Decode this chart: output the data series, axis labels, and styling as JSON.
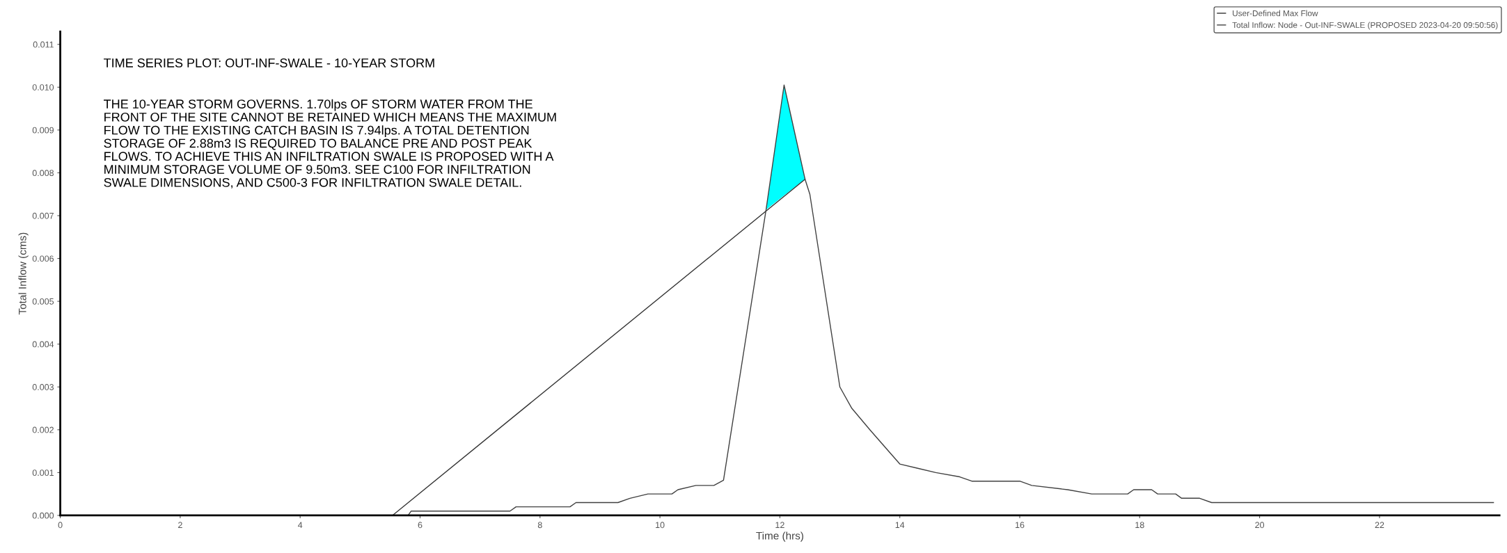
{
  "chart_data": {
    "type": "line",
    "title": "TIME SERIES PLOT: OUT-INF-SWALE - 10-YEAR STORM",
    "xlabel": "Time (hrs)",
    "ylabel": "Total Inflow (cms)",
    "annotations": [
      "THE 10-YEAR STORM GOVERNS. 1.70lps OF STORM WATER FROM THE\nFRONT OF THE SITE CANNOT BE RETAINED WHICH MEANS THE MAXIMUM\nFLOW TO THE EXISTING CATCH BASIN IS 7.94lps. A TOTAL DETENTION\nSTORAGE OF 2.88m3 IS REQUIRED TO BALANCE PRE AND POST PEAK\nFLOWS. TO ACHIEVE THIS AN INFILTRATION SWALE IS PROPOSED WITH A\nMINIMUM STORAGE VOLUME OF 9.50m3. SEE C100 FOR INFILTRATION\nSWALE DIMENSIONS, AND C500-3 FOR INFILTRATION SWALE DETAIL."
    ],
    "series": [
      {
        "name": "User-Defined Max Flow",
        "color": "#333333",
        "x": [
          0,
          5.54,
          12.42
        ],
        "values": [
          0,
          0,
          0.00785
        ]
      },
      {
        "name": "Total Inflow: Node - Out-INF-SWALE (PROPOSED 2023-04-20 09:50:56)",
        "color": "#404040",
        "x": [
          0,
          5.8,
          5.85,
          7.5,
          7.6,
          8.5,
          8.6,
          9.3,
          9.5,
          9.8,
          10.2,
          10.3,
          10.6,
          10.9,
          11.06,
          11.77,
          12.07,
          12.42,
          12.5,
          13.0,
          13.2,
          13.5,
          14.0,
          14.3,
          14.6,
          15.0,
          15.2,
          16.0,
          16.2,
          16.8,
          17.2,
          17.8,
          17.9,
          18.2,
          18.3,
          18.6,
          18.7,
          19.0,
          19.2,
          23.9
        ],
        "values": [
          0,
          0,
          0.0001,
          0.0001,
          0.0002,
          0.0002,
          0.0003,
          0.0003,
          0.0004,
          0.0005,
          0.0005,
          0.0006,
          0.0007,
          0.0007,
          0.00082,
          0.00714,
          0.01005,
          0.00785,
          0.0075,
          0.003,
          0.0025,
          0.002,
          0.0012,
          0.0011,
          0.001,
          0.0009,
          0.0008,
          0.0008,
          0.0007,
          0.0006,
          0.0005,
          0.0005,
          0.0006,
          0.0006,
          0.0005,
          0.0005,
          0.0004,
          0.0004,
          0.0003,
          0.0003
        ],
        "lower": [
          null,
          null,
          null,
          null,
          null,
          null,
          null,
          null,
          null,
          null,
          null,
          null,
          null,
          null,
          null,
          0.00714,
          0.00747,
          0.00785,
          null,
          null,
          null,
          null,
          null,
          null,
          null,
          null,
          null,
          null,
          null,
          null,
          null,
          null,
          null,
          null,
          null,
          null,
          null,
          null,
          null,
          null
        ],
        "upper": [
          null,
          null,
          null,
          null,
          null,
          null,
          null,
          null,
          null,
          null,
          null,
          null,
          null,
          null,
          null,
          0.00714,
          0.01005,
          0.00785,
          null,
          null,
          null,
          null,
          null,
          null,
          null,
          null,
          null,
          null,
          null,
          null,
          null,
          null,
          null,
          null,
          null,
          null,
          null,
          null,
          null,
          null
        ]
      }
    ],
    "xlim": [
      0,
      24
    ],
    "xticks": [
      0,
      2,
      4,
      6,
      8,
      10,
      12,
      14,
      16,
      18,
      20,
      22
    ],
    "ylim": [
      0,
      0.0113
    ],
    "yticks": [
      {
        "value": 0,
        "label": "0.000"
      },
      {
        "value": 0.001,
        "label": "0.001"
      },
      {
        "value": 0.002,
        "label": "0.002"
      },
      {
        "value": 0.003,
        "label": "0.003"
      },
      {
        "value": 0.004,
        "label": "0.004"
      },
      {
        "value": 0.005,
        "label": "0.005"
      },
      {
        "value": 0.006,
        "label": "0.006"
      },
      {
        "value": 0.007,
        "label": "0.007"
      },
      {
        "value": 0.008,
        "label": "0.008"
      },
      {
        "value": 0.009,
        "label": "0.009"
      },
      {
        "value": 0.01,
        "label": "0.010"
      },
      {
        "value": 0.011,
        "label": "0.011"
      }
    ],
    "grid": false,
    "legend": "top right",
    "marker": "none",
    "line_style": "solid"
  }
}
